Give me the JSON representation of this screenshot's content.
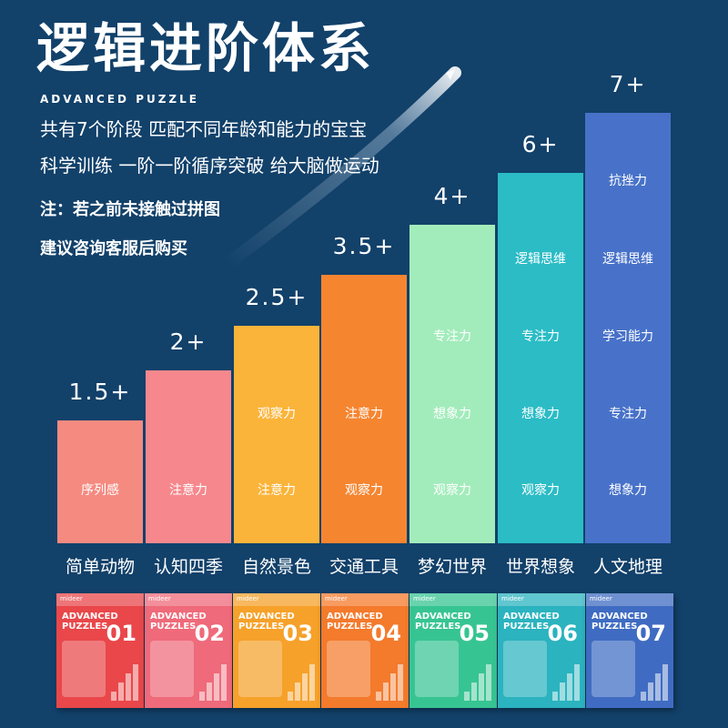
{
  "header": {
    "title": "逻辑进阶体系",
    "subtitle": "ADVANCED PUZZLE",
    "desc_lines": [
      "共有7个阶段 匹配不同年龄和能力的宝宝",
      "科学训练 一阶一阶循序突破 给大脑做运动"
    ],
    "note_lines": [
      "注：若之前未接触过拼图",
      "建议咨询客服后购买"
    ]
  },
  "levels": [
    {
      "age": "1.5+",
      "category": "简单动物",
      "color": "#f58a80",
      "skills": [
        "序列感"
      ]
    },
    {
      "age": "2+",
      "category": "认知四季",
      "color": "#f6888d",
      "skills": [
        "注意力"
      ]
    },
    {
      "age": "2.5+",
      "category": "自然景色",
      "color": "#fbb43a",
      "skills": [
        "观察力",
        "注意力"
      ]
    },
    {
      "age": "3.5+",
      "category": "交通工具",
      "color": "#f68530",
      "skills": [
        "注意力",
        "观察力"
      ]
    },
    {
      "age": "4+",
      "category": "梦幻世界",
      "color": "#a2ecbb",
      "skills": [
        "专注力",
        "想象力",
        "观察力"
      ]
    },
    {
      "age": "6+",
      "category": "世界想象",
      "color": "#2bbcc6",
      "skills": [
        "逻辑思维",
        "专注力",
        "想象力",
        "观察力"
      ]
    },
    {
      "age": "7+",
      "category": "人文地理",
      "color": "#4872c9",
      "skills": [
        "抗挫力",
        "逻辑思维",
        "学习能力",
        "专注力",
        "想象力"
      ]
    }
  ],
  "boxes": [
    {
      "brand": "mideer",
      "line1": "ADVANCED",
      "line2": "PUZZLES",
      "number": "01",
      "color": "#e9474a"
    },
    {
      "brand": "mideer",
      "line1": "ADVANCED",
      "line2": "PUZZLES",
      "number": "02",
      "color": "#ef6a7a"
    },
    {
      "brand": "mideer",
      "line1": "ADVANCED",
      "line2": "PUZZLES",
      "number": "03",
      "color": "#f6a12a"
    },
    {
      "brand": "mideer",
      "line1": "ADVANCED",
      "line2": "PUZZLES",
      "number": "04",
      "color": "#f47a2c"
    },
    {
      "brand": "mideer",
      "line1": "ADVANCED",
      "line2": "PUZZLES",
      "number": "05",
      "color": "#37c493"
    },
    {
      "brand": "mideer",
      "line1": "ADVANCED",
      "line2": "PUZZLES",
      "number": "06",
      "color": "#2bb3bf"
    },
    {
      "brand": "mideer",
      "line1": "ADVANCED",
      "line2": "PUZZLES",
      "number": "07",
      "color": "#3f6cc2"
    }
  ]
}
